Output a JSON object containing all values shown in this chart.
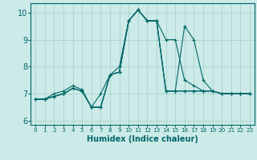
{
  "xlabel": "Humidex (Indice chaleur)",
  "ylabel": "",
  "background_color": "#cceae8",
  "grid_color": "#aad4d0",
  "line_color": "#006868",
  "xlim": [
    -0.5,
    23.5
  ],
  "ylim": [
    5.85,
    10.35
  ],
  "xticks": [
    0,
    1,
    2,
    3,
    4,
    5,
    6,
    7,
    8,
    9,
    10,
    11,
    12,
    13,
    14,
    15,
    16,
    17,
    18,
    19,
    20,
    21,
    22,
    23
  ],
  "yticks": [
    6,
    7,
    8,
    9,
    10
  ],
  "series": [
    [
      6.8,
      6.8,
      6.9,
      7.0,
      7.2,
      7.1,
      6.5,
      6.5,
      7.7,
      7.8,
      9.7,
      10.1,
      9.7,
      9.7,
      7.1,
      7.1,
      7.1,
      7.1,
      7.1,
      7.1,
      7.0,
      7.0,
      7.0,
      7.0
    ],
    [
      6.8,
      6.8,
      6.9,
      7.0,
      7.2,
      7.1,
      6.5,
      6.5,
      7.7,
      7.8,
      9.7,
      10.1,
      9.7,
      9.7,
      9.0,
      9.0,
      7.5,
      7.3,
      7.1,
      7.1,
      7.0,
      7.0,
      7.0,
      7.0
    ],
    [
      6.8,
      6.8,
      6.9,
      7.0,
      7.2,
      7.1,
      6.5,
      6.5,
      7.7,
      7.8,
      9.7,
      10.1,
      9.7,
      9.7,
      7.1,
      7.1,
      9.5,
      9.0,
      7.5,
      7.1,
      7.0,
      7.0,
      7.0,
      7.0
    ],
    [
      6.8,
      6.8,
      7.0,
      7.1,
      7.3,
      7.15,
      6.5,
      7.0,
      7.7,
      8.0,
      9.7,
      10.1,
      9.7,
      9.7,
      7.1,
      7.1,
      7.1,
      7.1,
      7.1,
      7.1,
      7.0,
      7.0,
      7.0,
      7.0
    ]
  ]
}
